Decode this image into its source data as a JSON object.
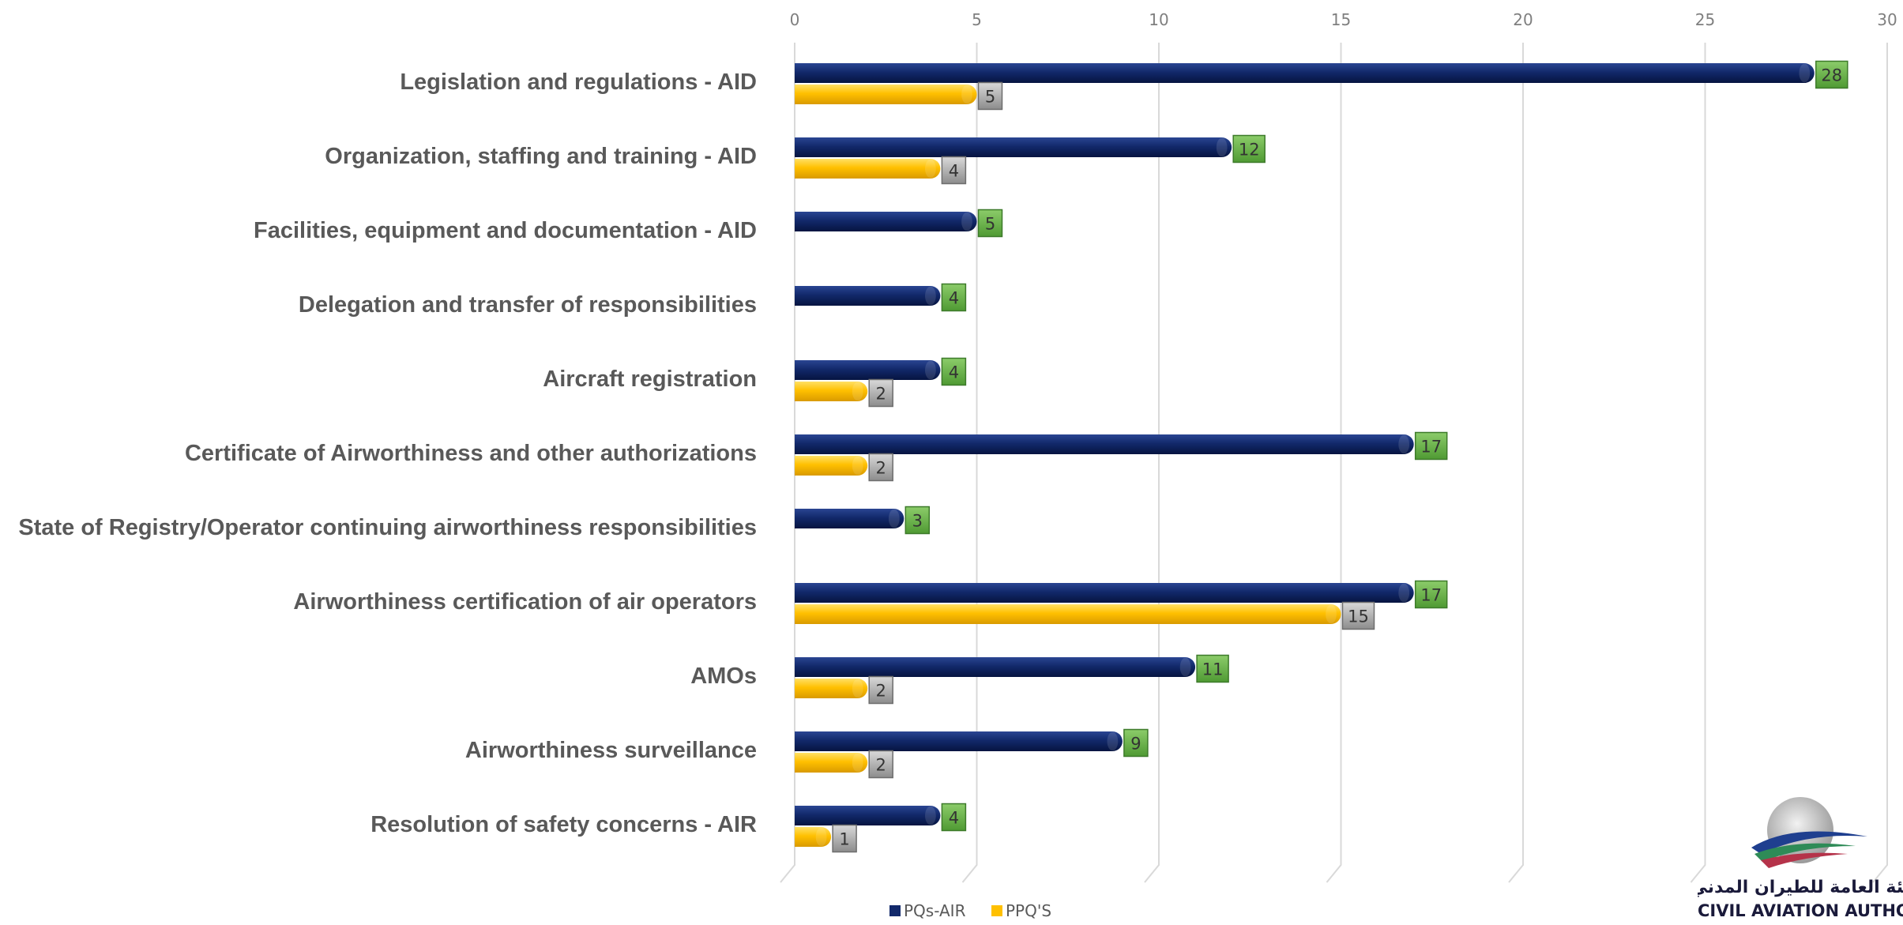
{
  "chart_data": {
    "type": "bar",
    "orientation": "horizontal",
    "style": "3d-cylinder",
    "categories": [
      "Legislation and regulations - AID",
      "Organization, staffing and training - AID",
      "Facilities, equipment and documentation - AID",
      "Delegation and transfer of responsibilities",
      "Aircraft registration",
      "Certificate of Airworthiness and other authorizations",
      "State of Registry/Operator continuing airworthiness responsibilities",
      "Airworthiness certification of air operators",
      "AMOs",
      "Airworthiness surveillance",
      "Resolution of safety concerns - AIR"
    ],
    "series": [
      {
        "name": "PQs-AIR",
        "color": "#12296b",
        "label_color": "#6ab04c",
        "values": [
          28,
          12,
          5,
          4,
          4,
          17,
          3,
          17,
          11,
          9,
          4
        ]
      },
      {
        "name": "PPQ'S",
        "color": "#ffc000",
        "label_color": "#a6a6a6",
        "values": [
          5,
          4,
          null,
          null,
          2,
          2,
          null,
          15,
          2,
          2,
          1
        ]
      }
    ],
    "xlim": [
      0,
      30
    ],
    "xticks": [
      0,
      5,
      10,
      15,
      20,
      25,
      30
    ],
    "grid": true,
    "axis_position": "top",
    "legend": "bottom"
  },
  "logo": {
    "arabic_name": "الهيئة العامة للطيران المدني",
    "english_name": "CIVIL AVIATION AUTHORITY"
  }
}
